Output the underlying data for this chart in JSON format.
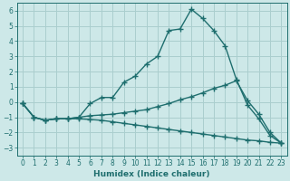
{
  "xlabel": "Humidex (Indice chaleur)",
  "xlim": [
    -0.5,
    23.5
  ],
  "ylim": [
    -3.5,
    6.5
  ],
  "xticks": [
    0,
    1,
    2,
    3,
    4,
    5,
    6,
    7,
    8,
    9,
    10,
    11,
    12,
    13,
    14,
    15,
    16,
    17,
    18,
    19,
    20,
    21,
    22,
    23
  ],
  "yticks": [
    -3,
    -2,
    -1,
    0,
    1,
    2,
    3,
    4,
    5,
    6
  ],
  "bg_color": "#cde8e8",
  "grid_color": "#aacece",
  "line_color": "#1e6e6e",
  "line1_x": [
    0,
    1,
    2,
    3,
    4,
    5,
    6,
    7,
    8,
    9,
    10,
    11,
    12,
    13,
    14,
    15,
    16,
    17,
    18,
    19,
    20,
    21,
    22,
    23
  ],
  "line1_y": [
    -0.1,
    -1.0,
    -1.2,
    -1.1,
    -1.1,
    -1.0,
    -0.1,
    0.3,
    0.3,
    1.3,
    1.7,
    2.5,
    3.0,
    4.7,
    4.8,
    6.1,
    5.5,
    4.7,
    3.7,
    1.5,
    -0.2,
    -1.1,
    -2.2,
    -2.7
  ],
  "line2_x": [
    0,
    1,
    2,
    3,
    4,
    5,
    6,
    7,
    8,
    9,
    10,
    11,
    12,
    13,
    14,
    15,
    16,
    17,
    18,
    19,
    20,
    21,
    22,
    23
  ],
  "line2_y": [
    -0.1,
    -1.0,
    -1.2,
    -1.1,
    -1.1,
    -1.0,
    -0.9,
    -0.85,
    -0.8,
    -0.7,
    -0.6,
    -0.5,
    -0.3,
    -0.1,
    0.15,
    0.35,
    0.6,
    0.9,
    1.1,
    1.4,
    0.1,
    -0.8,
    -2.0,
    -2.7
  ],
  "line3_x": [
    0,
    1,
    2,
    3,
    4,
    5,
    6,
    7,
    8,
    9,
    10,
    11,
    12,
    13,
    14,
    15,
    16,
    17,
    18,
    19,
    20,
    21,
    22,
    23
  ],
  "line3_y": [
    -0.1,
    -1.0,
    -1.2,
    -1.1,
    -1.1,
    -1.1,
    -1.15,
    -1.2,
    -1.3,
    -1.4,
    -1.5,
    -1.6,
    -1.7,
    -1.8,
    -1.9,
    -2.0,
    -2.1,
    -2.2,
    -2.3,
    -2.4,
    -2.5,
    -2.55,
    -2.65,
    -2.7
  ]
}
